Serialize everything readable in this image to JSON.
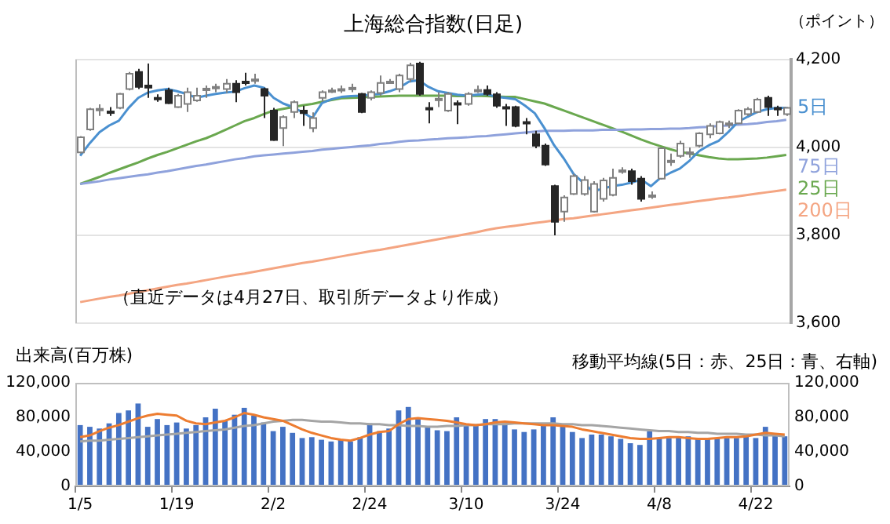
{
  "chart_data": [
    {
      "type": "candlestick",
      "title": "上海総合指数(日足)",
      "ylabel": "（ポイント）",
      "annotations": [
        "（直近データは4月27日、取引所データより作成）"
      ],
      "ohlc": [
        [
          3989,
          4026,
          3986,
          4023
        ],
        [
          4041,
          4090,
          4038,
          4087
        ],
        [
          4085,
          4098,
          4072,
          4088
        ],
        [
          4082,
          4092,
          4072,
          4081
        ],
        [
          4090,
          4124,
          4087,
          4122
        ],
        [
          4133,
          4172,
          4130,
          4168
        ],
        [
          4172,
          4179,
          4133,
          4138
        ],
        [
          4141,
          4191,
          4113,
          4136
        ],
        [
          4113,
          4121,
          4104,
          4112
        ],
        [
          4130,
          4136,
          4099,
          4101
        ],
        [
          4092,
          4122,
          4090,
          4118
        ],
        [
          4099,
          4136,
          4081,
          4126
        ],
        [
          4107,
          4136,
          4104,
          4118
        ],
        [
          4132,
          4141,
          4113,
          4134
        ],
        [
          4137,
          4145,
          4126,
          4138
        ],
        [
          4133,
          4156,
          4124,
          4145
        ],
        [
          4145,
          4153,
          4103,
          4126
        ],
        [
          4150,
          4170,
          4141,
          4149
        ],
        [
          4153,
          4168,
          4145,
          4155
        ],
        [
          4133,
          4136,
          4067,
          4118
        ],
        [
          4084,
          4090,
          4015,
          4017
        ],
        [
          4044,
          4073,
          4003,
          4069
        ],
        [
          4081,
          4107,
          4067,
          4103
        ],
        [
          4084,
          4095,
          4049,
          4078
        ],
        [
          4044,
          4080,
          4035,
          4067
        ],
        [
          4113,
          4130,
          4104,
          4126
        ],
        [
          4128,
          4136,
          4124,
          4130
        ],
        [
          4131,
          4141,
          4124,
          4133
        ],
        [
          4134,
          4145,
          4126,
          4136
        ],
        [
          4122,
          4124,
          4078,
          4081
        ],
        [
          4113,
          4130,
          4107,
          4126
        ],
        [
          4124,
          4164,
          4118,
          4147
        ],
        [
          4149,
          4156,
          4145,
          4150
        ],
        [
          4133,
          4168,
          4126,
          4164
        ],
        [
          4156,
          4193,
          4149,
          4187
        ],
        [
          4191,
          4195,
          4118,
          4122
        ],
        [
          4090,
          4103,
          4055,
          4089
        ],
        [
          4108,
          4126,
          4092,
          4111
        ],
        [
          4084,
          4126,
          4081,
          4122
        ],
        [
          4101,
          4107,
          4053,
          4099
        ],
        [
          4099,
          4126,
          4095,
          4122
        ],
        [
          4129,
          4141,
          4124,
          4131
        ],
        [
          4131,
          4141,
          4118,
          4122
        ],
        [
          4121,
          4126,
          4090,
          4095
        ],
        [
          4092,
          4099,
          4049,
          4090
        ],
        [
          4092,
          4095,
          4046,
          4049
        ],
        [
          4058,
          4067,
          4030,
          4055
        ],
        [
          4030,
          4038,
          3998,
          4004
        ],
        [
          4004,
          4009,
          3958,
          3961
        ],
        [
          3912,
          3915,
          3800,
          3831
        ],
        [
          3854,
          3891,
          3831,
          3886
        ],
        [
          3894,
          3940,
          3892,
          3935
        ],
        [
          3894,
          3935,
          3890,
          3926
        ],
        [
          3854,
          3923,
          3852,
          3917
        ],
        [
          3883,
          3931,
          3877,
          3925
        ],
        [
          3892,
          3952,
          3889,
          3931
        ],
        [
          3946,
          3955,
          3940,
          3948
        ],
        [
          3946,
          3952,
          3915,
          3923
        ],
        [
          3929,
          3935,
          3877,
          3883
        ],
        [
          3889,
          3900,
          3883,
          3891
        ],
        [
          3929,
          4000,
          3927,
          3998
        ],
        [
          3969,
          3986,
          3958,
          3970
        ],
        [
          3981,
          4015,
          3977,
          4009
        ],
        [
          3986,
          4000,
          3977,
          3989
        ],
        [
          4004,
          4035,
          4000,
          4032
        ],
        [
          4030,
          4055,
          4021,
          4049
        ],
        [
          4032,
          4061,
          4030,
          4058
        ],
        [
          4053,
          4061,
          4044,
          4055
        ],
        [
          4055,
          4087,
          4053,
          4084
        ],
        [
          4076,
          4092,
          4072,
          4087
        ],
        [
          4081,
          4113,
          4078,
          4109
        ],
        [
          4113,
          4118,
          4072,
          4092
        ],
        [
          4090,
          4095,
          4072,
          4089
        ],
        [
          4076,
          4092,
          4072,
          4090
        ]
      ],
      "colors": [
        "#ffffff",
        "#ffffff",
        "#ffffff",
        "#262626",
        "#ffffff",
        "#ffffff",
        "#262626",
        "#262626",
        "#262626",
        "#262626",
        "#ffffff",
        "#ffffff",
        "#ffffff",
        "#ffffff",
        "#ffffff",
        "#ffffff",
        "#262626",
        "#262626",
        "#ffffff",
        "#262626",
        "#262626",
        "#ffffff",
        "#ffffff",
        "#262626",
        "#ffffff",
        "#ffffff",
        "#ffffff",
        "#ffffff",
        "#ffffff",
        "#262626",
        "#ffffff",
        "#ffffff",
        "#ffffff",
        "#ffffff",
        "#ffffff",
        "#262626",
        "#262626",
        "#ffffff",
        "#ffffff",
        "#262626",
        "#ffffff",
        "#ffffff",
        "#262626",
        "#262626",
        "#262626",
        "#262626",
        "#262626",
        "#262626",
        "#262626",
        "#262626",
        "#ffffff",
        "#ffffff",
        "#ffffff",
        "#ffffff",
        "#ffffff",
        "#ffffff",
        "#ffffff",
        "#262626",
        "#262626",
        "#ffffff",
        "#ffffff",
        "#ffffff",
        "#ffffff",
        "#ffffff",
        "#ffffff",
        "#ffffff",
        "#ffffff",
        "#ffffff",
        "#ffffff",
        "#ffffff",
        "#ffffff",
        "#262626",
        "#262626",
        "#ffffff"
      ],
      "series": [
        {
          "name": "5日",
          "type": "line",
          "color": "#4a90d0",
          "values": [
            3981,
            4010,
            4035,
            4050,
            4061,
            4090,
            4113,
            4125,
            4130,
            4133,
            4128,
            4122,
            4113,
            4118,
            4122,
            4125,
            4127,
            4135,
            4141,
            4136,
            4113,
            4100,
            4092,
            4080,
            4067,
            4101,
            4110,
            4115,
            4117,
            4118,
            4120,
            4122,
            4128,
            4136,
            4150,
            4153,
            4138,
            4128,
            4124,
            4120,
            4118,
            4120,
            4122,
            4115,
            4113,
            4110,
            4095,
            4078,
            4044,
            4005,
            3975,
            3940,
            3920,
            3900,
            3906,
            3912,
            3915,
            3920,
            3927,
            3912,
            3931,
            3942,
            3952,
            3970,
            3992,
            4005,
            4015,
            4035,
            4058,
            4070,
            4081,
            4087,
            4090,
            4090
          ]
        },
        {
          "name": "75日",
          "type": "line",
          "color": "#8fa2dc",
          "values": [
            3917,
            3920,
            3923,
            3927,
            3930,
            3933,
            3936,
            3939,
            3943,
            3946,
            3950,
            3954,
            3958,
            3961,
            3965,
            3969,
            3973,
            3976,
            3980,
            3982,
            3984,
            3986,
            3988,
            3990,
            3992,
            3995,
            3997,
            3999,
            4001,
            4003,
            4005,
            4008,
            4010,
            4013,
            4015,
            4016,
            4018,
            4019,
            4021,
            4022,
            4023,
            4025,
            4026,
            4028,
            4030,
            4032,
            4034,
            4036,
            4038,
            4038,
            4038,
            4039,
            4039,
            4039,
            4040,
            4040,
            4040,
            4041,
            4041,
            4042,
            4042,
            4043,
            4043,
            4044,
            4046,
            4047,
            4049,
            4050,
            4052,
            4053,
            4055,
            4058,
            4060,
            4063
          ]
        },
        {
          "name": "25日",
          "type": "line",
          "color": "#6aa84f",
          "values": [
            3917,
            3925,
            3933,
            3942,
            3950,
            3958,
            3966,
            3975,
            3983,
            3990,
            3998,
            4006,
            4014,
            4021,
            4030,
            4040,
            4050,
            4060,
            4067,
            4076,
            4084,
            4088,
            4092,
            4096,
            4099,
            4104,
            4108,
            4112,
            4113,
            4114,
            4115,
            4116,
            4117,
            4118,
            4118,
            4118,
            4118,
            4118,
            4118,
            4117,
            4117,
            4118,
            4117,
            4116,
            4115,
            4115,
            4110,
            4105,
            4100,
            4092,
            4084,
            4076,
            4068,
            4060,
            4052,
            4044,
            4036,
            4027,
            4018,
            4010,
            4003,
            3996,
            3990,
            3986,
            3982,
            3978,
            3975,
            3973,
            3973,
            3974,
            3975,
            3977,
            3980,
            3983
          ]
        },
        {
          "name": "200日",
          "type": "line",
          "color": "#f4a582",
          "values": [
            3648,
            3652,
            3656,
            3660,
            3663,
            3667,
            3671,
            3675,
            3679,
            3683,
            3687,
            3690,
            3694,
            3698,
            3702,
            3706,
            3710,
            3713,
            3717,
            3721,
            3725,
            3729,
            3733,
            3737,
            3740,
            3744,
            3748,
            3752,
            3756,
            3760,
            3764,
            3767,
            3771,
            3775,
            3779,
            3783,
            3787,
            3791,
            3795,
            3799,
            3803,
            3807,
            3812,
            3816,
            3819,
            3822,
            3825,
            3828,
            3831,
            3834,
            3837,
            3839,
            3842,
            3845,
            3848,
            3851,
            3854,
            3857,
            3860,
            3863,
            3866,
            3869,
            3872,
            3875,
            3878,
            3881,
            3884,
            3886,
            3889,
            3892,
            3895,
            3898,
            3901,
            3904
          ]
        }
      ],
      "ylim": [
        3600,
        4200
      ],
      "yticks": [
        {
          "value": 3600,
          "label": "3,600"
        },
        {
          "value": 3800,
          "label": "3,800"
        },
        {
          "value": 4000,
          "label": "4,000"
        },
        {
          "value": 4200,
          "label": "4,200"
        }
      ],
      "grid": "y",
      "tick_labels": "y"
    },
    {
      "type": "bar",
      "ylabel": "出来高(百万株)",
      "annotations": [
        "移動平均線(5日：赤、25日：青、右軸)"
      ],
      "categories": [
        "1/5",
        null,
        null,
        null,
        null,
        null,
        null,
        null,
        null,
        null,
        "1/19",
        null,
        null,
        null,
        null,
        null,
        null,
        null,
        null,
        null,
        "2/2",
        null,
        null,
        null,
        null,
        null,
        null,
        null,
        null,
        null,
        "2/24",
        null,
        null,
        null,
        null,
        null,
        null,
        null,
        null,
        null,
        "3/10",
        null,
        null,
        null,
        null,
        null,
        null,
        null,
        null,
        null,
        "3/24",
        null,
        null,
        null,
        null,
        null,
        null,
        null,
        null,
        null,
        "4/8",
        null,
        null,
        null,
        null,
        null,
        null,
        null,
        null,
        null,
        "4/22",
        null,
        null,
        null
      ],
      "series": [
        {
          "type": "bar",
          "color": "#4472c4",
          "values": [
            71000,
            69000,
            67000,
            73000,
            85000,
            88000,
            96000,
            69000,
            78000,
            71000,
            74000,
            67000,
            71000,
            80000,
            90000,
            76000,
            83000,
            91000,
            82000,
            74000,
            64000,
            69000,
            62000,
            56000,
            57000,
            54000,
            52000,
            54000,
            52000,
            57000,
            73000,
            64000,
            67000,
            88000,
            92000,
            78000,
            69000,
            65000,
            64000,
            80000,
            70000,
            70000,
            78000,
            78000,
            73000,
            66000,
            63000,
            66000,
            70000,
            80000,
            70000,
            63000,
            56000,
            60000,
            60000,
            58000,
            55000,
            50000,
            48000,
            64000,
            56000,
            56000,
            58000,
            58000,
            55000,
            56000,
            56000,
            56000,
            56000,
            58000,
            56000,
            69000,
            60000,
            58000
          ]
        },
        {
          "type": "line",
          "color": "#ed7d31",
          "values": [
            57000,
            59000,
            64000,
            68000,
            71000,
            75000,
            79000,
            82000,
            84000,
            83000,
            82000,
            76000,
            73000,
            72000,
            74000,
            76000,
            80000,
            85000,
            83000,
            80000,
            78000,
            76000,
            71000,
            66000,
            62000,
            59000,
            56000,
            54000,
            53000,
            56000,
            60000,
            63000,
            64000,
            72000,
            78000,
            79000,
            78000,
            77000,
            76000,
            74000,
            72000,
            71000,
            72000,
            74000,
            75000,
            74000,
            73000,
            72000,
            71000,
            71000,
            70000,
            69000,
            66000,
            64000,
            62000,
            60000,
            58000,
            56000,
            55000,
            55000,
            56000,
            57000,
            57000,
            56000,
            55000,
            55000,
            56000,
            57000,
            57000,
            58000,
            60000,
            62000,
            61000,
            60000
          ]
        },
        {
          "type": "line",
          "color": "#a5a5a5",
          "values": [
            52000,
            53000,
            53000,
            54000,
            55000,
            56000,
            57000,
            58000,
            59000,
            60000,
            61000,
            62000,
            63000,
            64000,
            65000,
            66000,
            68000,
            70000,
            71000,
            73000,
            75000,
            76000,
            77000,
            77000,
            76000,
            75000,
            75000,
            74000,
            73000,
            73000,
            72000,
            72000,
            71000,
            71000,
            70000,
            70000,
            69000,
            69000,
            70000,
            70000,
            71000,
            71000,
            72000,
            72000,
            72000,
            73000,
            73000,
            73000,
            73000,
            73000,
            72000,
            72000,
            71000,
            71000,
            70000,
            69000,
            68000,
            67000,
            66000,
            65000,
            64000,
            64000,
            63000,
            63000,
            62000,
            62000,
            61000,
            61000,
            61000,
            60000,
            60000,
            59000,
            59000,
            58000
          ]
        }
      ],
      "ylim": [
        0,
        120000
      ],
      "yticks": [
        0,
        {
          "value": 40000,
          "label": "40,000"
        },
        {
          "value": 80000,
          "label": "80,000"
        },
        {
          "value": 120000,
          "label": "120,000"
        }
      ],
      "y2lim": [
        0,
        120000
      ],
      "y2ticks": [
        0,
        {
          "value": 40000,
          "label": "40,000"
        },
        {
          "value": 80000,
          "label": "80,000"
        },
        {
          "value": 120000,
          "label": "120,000"
        }
      ]
    }
  ]
}
